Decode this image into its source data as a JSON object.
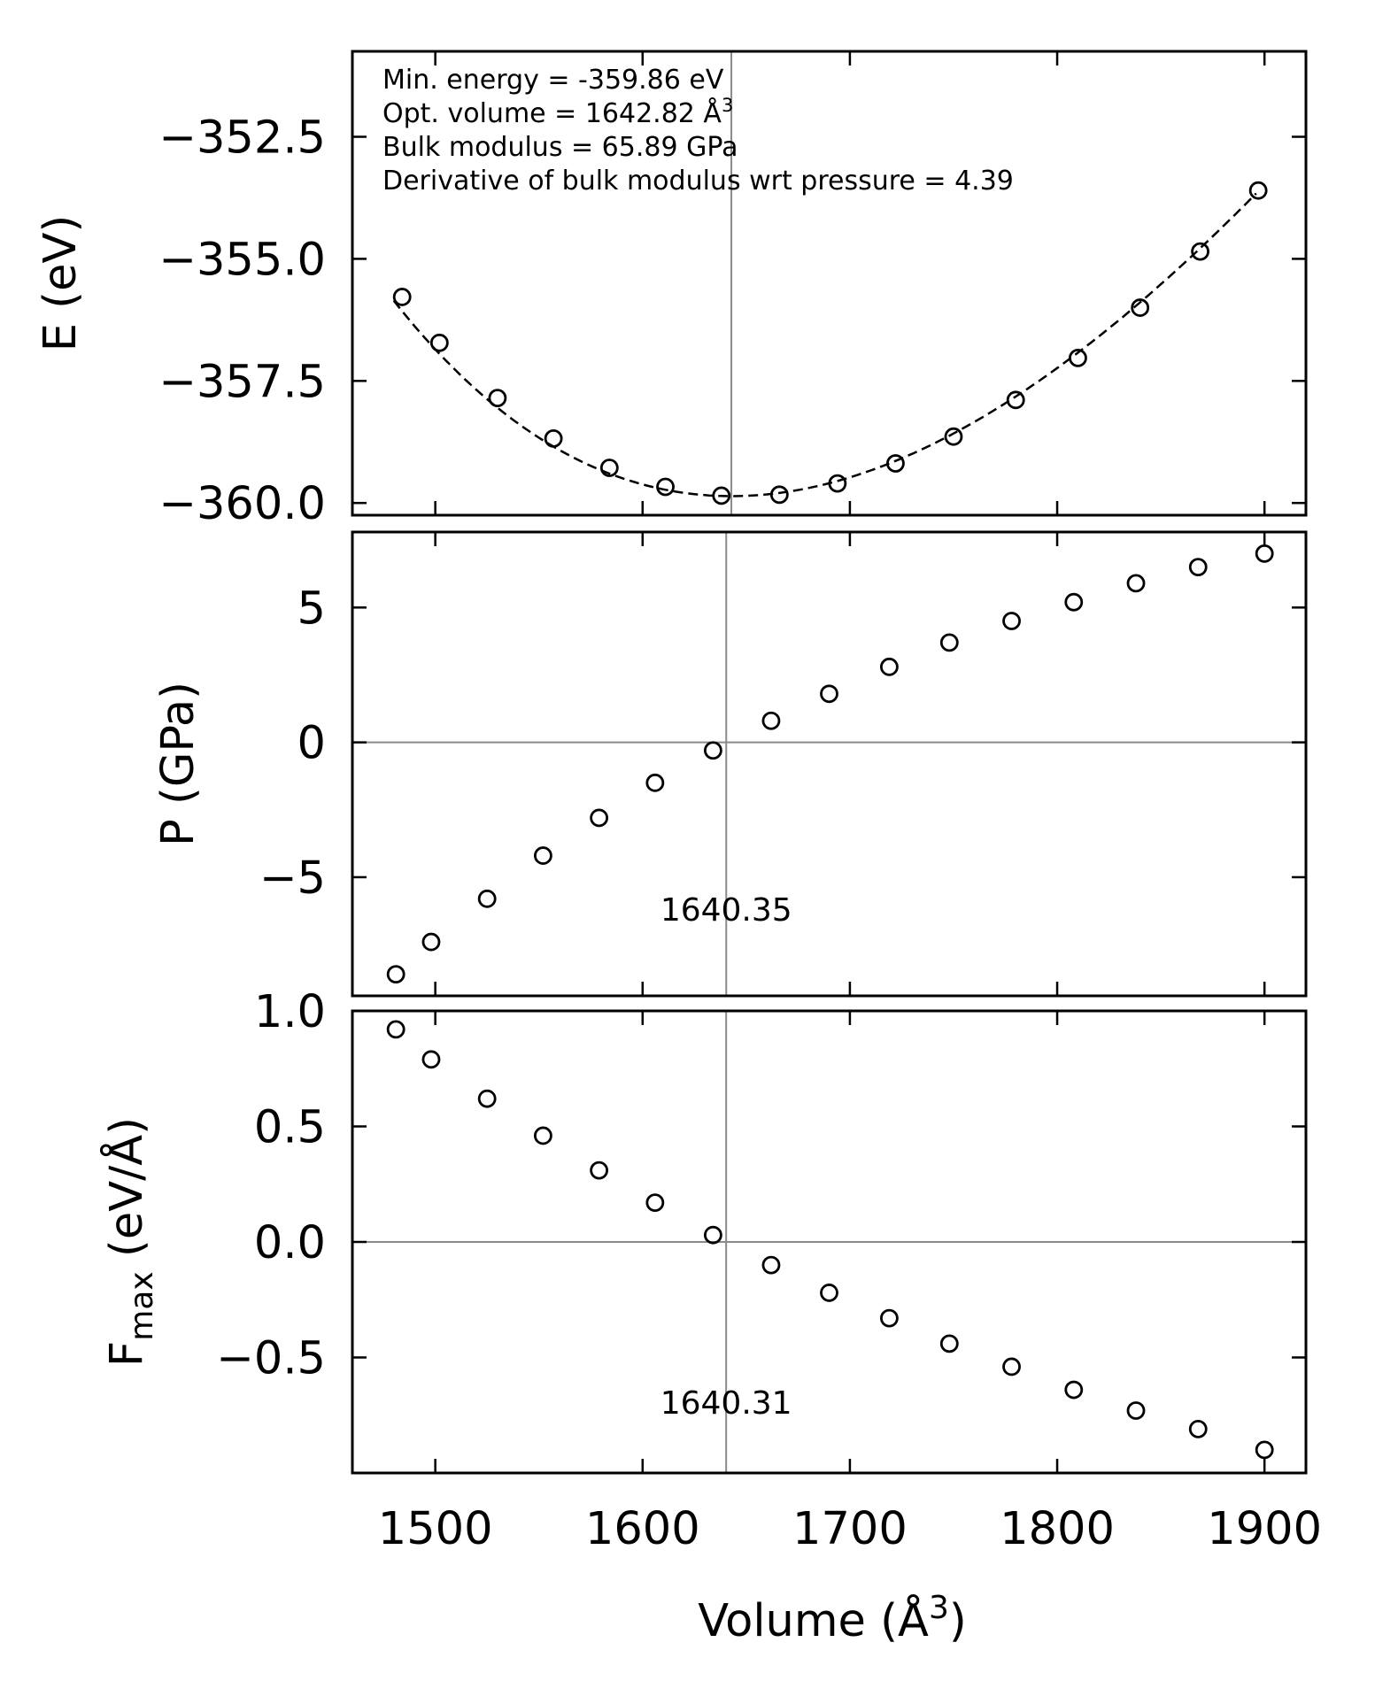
{
  "figure": {
    "xlabel": "Volume (Å",
    "xlabel_sup": "3",
    "xlabel_close": ")"
  },
  "chart_data": [
    {
      "type": "scatter",
      "id": "energy",
      "ylabel": "E (eV)",
      "xlim": [
        1460,
        1920
      ],
      "ylim": [
        -360.25,
        -350.75
      ],
      "yticks": [
        -352.5,
        -355.0,
        -357.5,
        -360.0
      ],
      "ytick_labels": [
        "−352.5",
        "−355.0",
        "−357.5",
        "−360.0"
      ],
      "xticks": [
        1500,
        1600,
        1700,
        1800,
        1900
      ],
      "vline": 1642.82,
      "annotations": [
        "Min. energy = -359.86 eV",
        "Opt. volume = 1642.82 Å",
        "Bulk modulus = 65.89 GPa",
        "Derivative of bulk modulus wrt pressure = 4.39"
      ],
      "annotation_sup": "3",
      "fit": {
        "e0": -359.86,
        "v0": 1642.82,
        "b0_gpa": 65.89,
        "b0_prime": 4.39,
        "x_range": [
          1480,
          1897
        ]
      },
      "x": [
        1484,
        1502,
        1530,
        1557,
        1584,
        1611,
        1638,
        1666,
        1694,
        1722,
        1750,
        1780,
        1810,
        1840,
        1869,
        1897
      ],
      "y": [
        -355.78,
        -356.72,
        -357.85,
        -358.68,
        -359.28,
        -359.67,
        -359.85,
        -359.83,
        -359.6,
        -359.19,
        -358.64,
        -357.89,
        -357.03,
        -356.0,
        -354.85,
        -353.6
      ]
    },
    {
      "type": "scatter",
      "id": "pressure",
      "ylabel": "P (GPa)",
      "xlim": [
        1460,
        1920
      ],
      "ylim": [
        -9.4,
        7.8
      ],
      "yticks": [
        5,
        0,
        -5
      ],
      "ytick_labels": [
        "5",
        "0",
        "−5"
      ],
      "xticks": [
        1500,
        1600,
        1700,
        1800,
        1900
      ],
      "vline": 1640.35,
      "hline": 0,
      "annotation": "1640.35",
      "x": [
        1481,
        1498,
        1525,
        1552,
        1579,
        1606,
        1634,
        1662,
        1690,
        1719,
        1748,
        1778,
        1808,
        1838,
        1868,
        1900
      ],
      "y": [
        -8.6,
        -7.4,
        -5.8,
        -4.2,
        -2.8,
        -1.5,
        -0.3,
        0.8,
        1.8,
        2.8,
        3.7,
        4.5,
        5.2,
        5.9,
        6.5,
        7.0
      ]
    },
    {
      "type": "scatter",
      "id": "force",
      "ylabel": "F",
      "ylabel_sub": "max",
      "ylabel_rest": " (eV/Å)",
      "xlim": [
        1460,
        1920
      ],
      "ylim": [
        -1.0,
        1.0
      ],
      "yticks": [
        1.0,
        0.5,
        0.0,
        -0.5
      ],
      "ytick_labels": [
        "1.0",
        "0.5",
        "0.0",
        "−0.5"
      ],
      "xticks": [
        1500,
        1600,
        1700,
        1800,
        1900
      ],
      "xtick_labels": [
        "1500",
        "1600",
        "1700",
        "1800",
        "1900"
      ],
      "vline": 1640.31,
      "hline": 0,
      "annotation": "1640.31",
      "x": [
        1481,
        1498,
        1525,
        1552,
        1579,
        1606,
        1634,
        1662,
        1690,
        1719,
        1748,
        1778,
        1808,
        1838,
        1868,
        1900
      ],
      "y": [
        0.92,
        0.79,
        0.62,
        0.46,
        0.31,
        0.17,
        0.03,
        -0.1,
        -0.22,
        -0.33,
        -0.44,
        -0.54,
        -0.64,
        -0.73,
        -0.81,
        -0.9
      ]
    }
  ]
}
